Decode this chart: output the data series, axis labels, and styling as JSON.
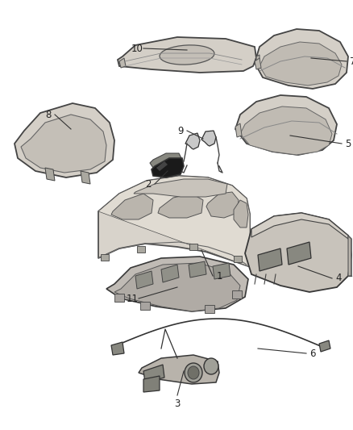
{
  "background_color": "#ffffff",
  "fig_width": 4.39,
  "fig_height": 5.33,
  "dpi": 100,
  "line_color": "#333333",
  "label_fontsize": 8.5,
  "label_color": "#222222",
  "part_fill": "#e8e4de",
  "part_edge": "#444444",
  "part_dark": "#2a2a2a",
  "part_mid": "#c0bab2",
  "part_shadow": "#b0aaa2"
}
